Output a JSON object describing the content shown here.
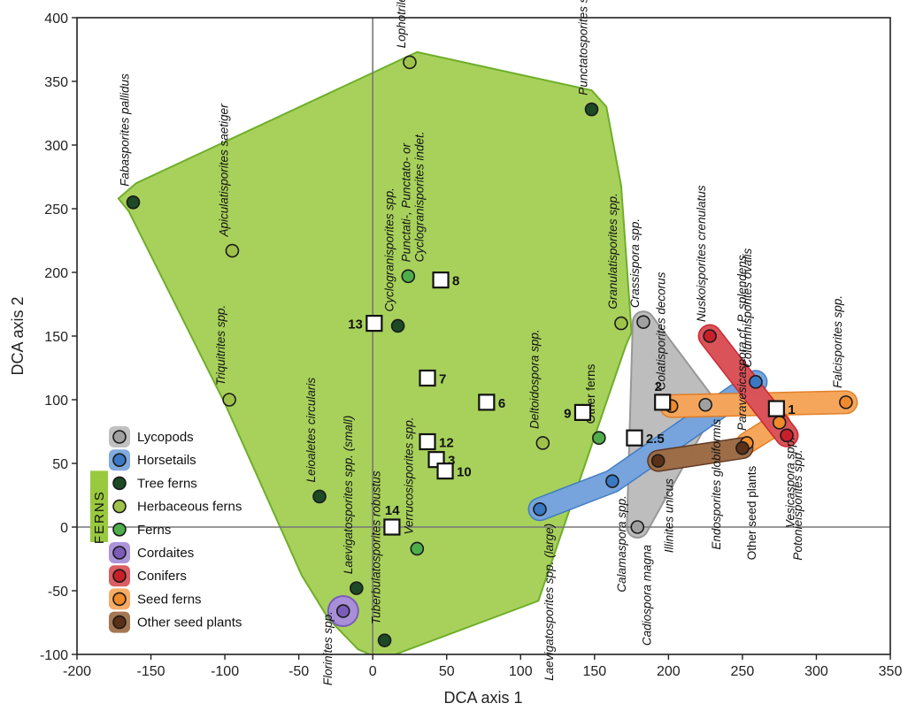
{
  "chart_data": {
    "type": "scatter",
    "xlabel": "DCA axis 1",
    "ylabel": "DCA axis 2",
    "xlim": [
      -200,
      350
    ],
    "ylim": [
      -100,
      400
    ],
    "xticks": [
      "-200",
      "-150",
      "-100",
      "-50",
      "0",
      "50",
      "100",
      "150",
      "200",
      "250",
      "300",
      "350"
    ],
    "yticks": [
      "-100",
      "-50",
      "0",
      "50",
      "100",
      "150",
      "200",
      "250",
      "300",
      "350",
      "400"
    ],
    "groups": [
      {
        "name": "Lycopods",
        "fill": "#c8c8c8",
        "marker": "#a0a0a0",
        "hull_fill": "#bdbdbd",
        "hull_stroke": "#8c8c8c"
      },
      {
        "name": "Horsetails",
        "fill": "#3a78c2",
        "marker": "#3a78c2",
        "hull_fill": "#7aa7dd",
        "hull_stroke": "#3a78c2"
      },
      {
        "name": "Tree ferns",
        "fill": "#1d4a25",
        "marker": "#1d4a25"
      },
      {
        "name": "Herbaceous ferns",
        "fill": "#9fc24a",
        "marker": "#9fc24a"
      },
      {
        "name": "Ferns",
        "fill": "#4fae4a",
        "marker": "#4fae4a"
      },
      {
        "name": "Cordaites",
        "fill": "#7b5cb8",
        "marker": "#7b5cb8",
        "hull_fill": "#a98fd8",
        "hull_stroke": "#7b5cb8"
      },
      {
        "name": "Conifers",
        "fill": "#c8202a",
        "marker": "#c8202a",
        "hull_fill": "#d9555c",
        "hull_stroke": "#c8202a"
      },
      {
        "name": "Seed ferns",
        "fill": "#f08a2a",
        "marker": "#f08a2a",
        "hull_fill": "#f5a85e",
        "hull_stroke": "#e07a1e"
      },
      {
        "name": "Other seed plants",
        "fill": "#5a3018",
        "marker": "#5a3018",
        "hull_fill": "#a0704a",
        "hull_stroke": "#5a3018"
      }
    ],
    "ferns_hull_fill": "#99c93f",
    "ferns_hull_stroke": "#6fae2a",
    "ferns_group_label": "FERNS",
    "taxa": [
      {
        "label": "Fabasporites pallidus",
        "group": "Tree ferns",
        "x": -162,
        "y": 255
      },
      {
        "label": "Apiculatisporites saetiger",
        "group": "Herbaceous ferns",
        "x": -95,
        "y": 217
      },
      {
        "label": "Triquitrites spp.",
        "group": "Herbaceous ferns",
        "x": -97,
        "y": 100
      },
      {
        "label": "Leioaletes circularis",
        "group": "Tree ferns",
        "x": -36,
        "y": 24
      },
      {
        "label": "Laevigatosporites spp. (small)",
        "group": "Tree ferns",
        "x": -11,
        "y": -48
      },
      {
        "label": "Tuberbulatosporites robustus",
        "group": "Tree ferns",
        "x": 8,
        "y": -89
      },
      {
        "label": "Florinites spp.",
        "group": "Cordaites",
        "x": -20,
        "y": -66
      },
      {
        "label": "Cyclogranisporites spp.",
        "group": "Tree ferns",
        "x": 17,
        "y": 158
      },
      {
        "label": "Punctati-, Punctato- or Cyclogranisporites indet.",
        "group": "Ferns",
        "x": 24,
        "y": 197
      },
      {
        "label": "Lophotriletes spp.",
        "group": "Herbaceous ferns",
        "x": 25,
        "y": 365
      },
      {
        "label": "Verrucosisporites spp.",
        "group": "Ferns",
        "x": 30,
        "y": -17
      },
      {
        "label": "Punctatosporites spp.",
        "group": "Tree ferns",
        "x": 148,
        "y": 328
      },
      {
        "label": "Granulatisporites spp.",
        "group": "Herbaceous ferns",
        "x": 168,
        "y": 160
      },
      {
        "label": "Deltoidospora spp.",
        "group": "Herbaceous ferns",
        "x": 115,
        "y": 66
      },
      {
        "label": "Other ferns",
        "group": "Ferns",
        "x": 153,
        "y": 70
      },
      {
        "label": "Laevigatosporites spp. (large)",
        "group": "Horsetails",
        "x": 113,
        "y": 14
      },
      {
        "label": "Calamaspora spp.",
        "group": "Horsetails",
        "x": 162,
        "y": 36
      },
      {
        "label": "Crassispora spp.",
        "group": "Lycopods",
        "x": 183,
        "y": 161
      },
      {
        "label": "Cadiospora magna",
        "group": "Lycopods",
        "x": 179,
        "y": 0
      },
      {
        "label": "Illinites unicus",
        "group": "Other seed plants",
        "x": 193,
        "y": 52
      },
      {
        "label": "Colatisporites decorus",
        "group": "Seed ferns",
        "x": 202,
        "y": 95
      },
      {
        "label": "Endosporites globiformis",
        "group": "Lycopods",
        "x": 225,
        "y": 96
      },
      {
        "label": "Nuskoisporites crenulatus",
        "group": "Conifers",
        "x": 228,
        "y": 150
      },
      {
        "label": "Paravesicaspora cf. P. splendens",
        "group": "Seed ferns",
        "x": 253,
        "y": 66
      },
      {
        "label": "Other seed plants",
        "group": "Other seed plants",
        "x": 250,
        "y": 62
      },
      {
        "label": "Columnisporites ovalis",
        "group": "Horsetails",
        "x": 259,
        "y": 114
      },
      {
        "label": "Vesicaspora spp.",
        "group": "Seed ferns",
        "x": 275,
        "y": 82
      },
      {
        "label": "Potonieisporites spp.",
        "group": "Conifers",
        "x": 280,
        "y": 72
      },
      {
        "label": "Falcisporites spp.",
        "group": "Seed ferns",
        "x": 320,
        "y": 98
      }
    ],
    "samples": [
      {
        "label": "1",
        "x": 273,
        "y": 93
      },
      {
        "label": "2",
        "x": 196,
        "y": 98
      },
      {
        "label": "2.5",
        "x": 177,
        "y": 70
      },
      {
        "label": "3",
        "x": 43,
        "y": 53
      },
      {
        "label": "6",
        "x": 77,
        "y": 98
      },
      {
        "label": "7",
        "x": 37,
        "y": 117
      },
      {
        "label": "8",
        "x": 46,
        "y": 194
      },
      {
        "label": "9",
        "x": 142,
        "y": 90
      },
      {
        "label": "10",
        "x": 49,
        "y": 44
      },
      {
        "label": "12",
        "x": 37,
        "y": 67
      },
      {
        "label": "13",
        "x": 1,
        "y": 160
      },
      {
        "label": "14",
        "x": 13,
        "y": 0
      }
    ]
  }
}
